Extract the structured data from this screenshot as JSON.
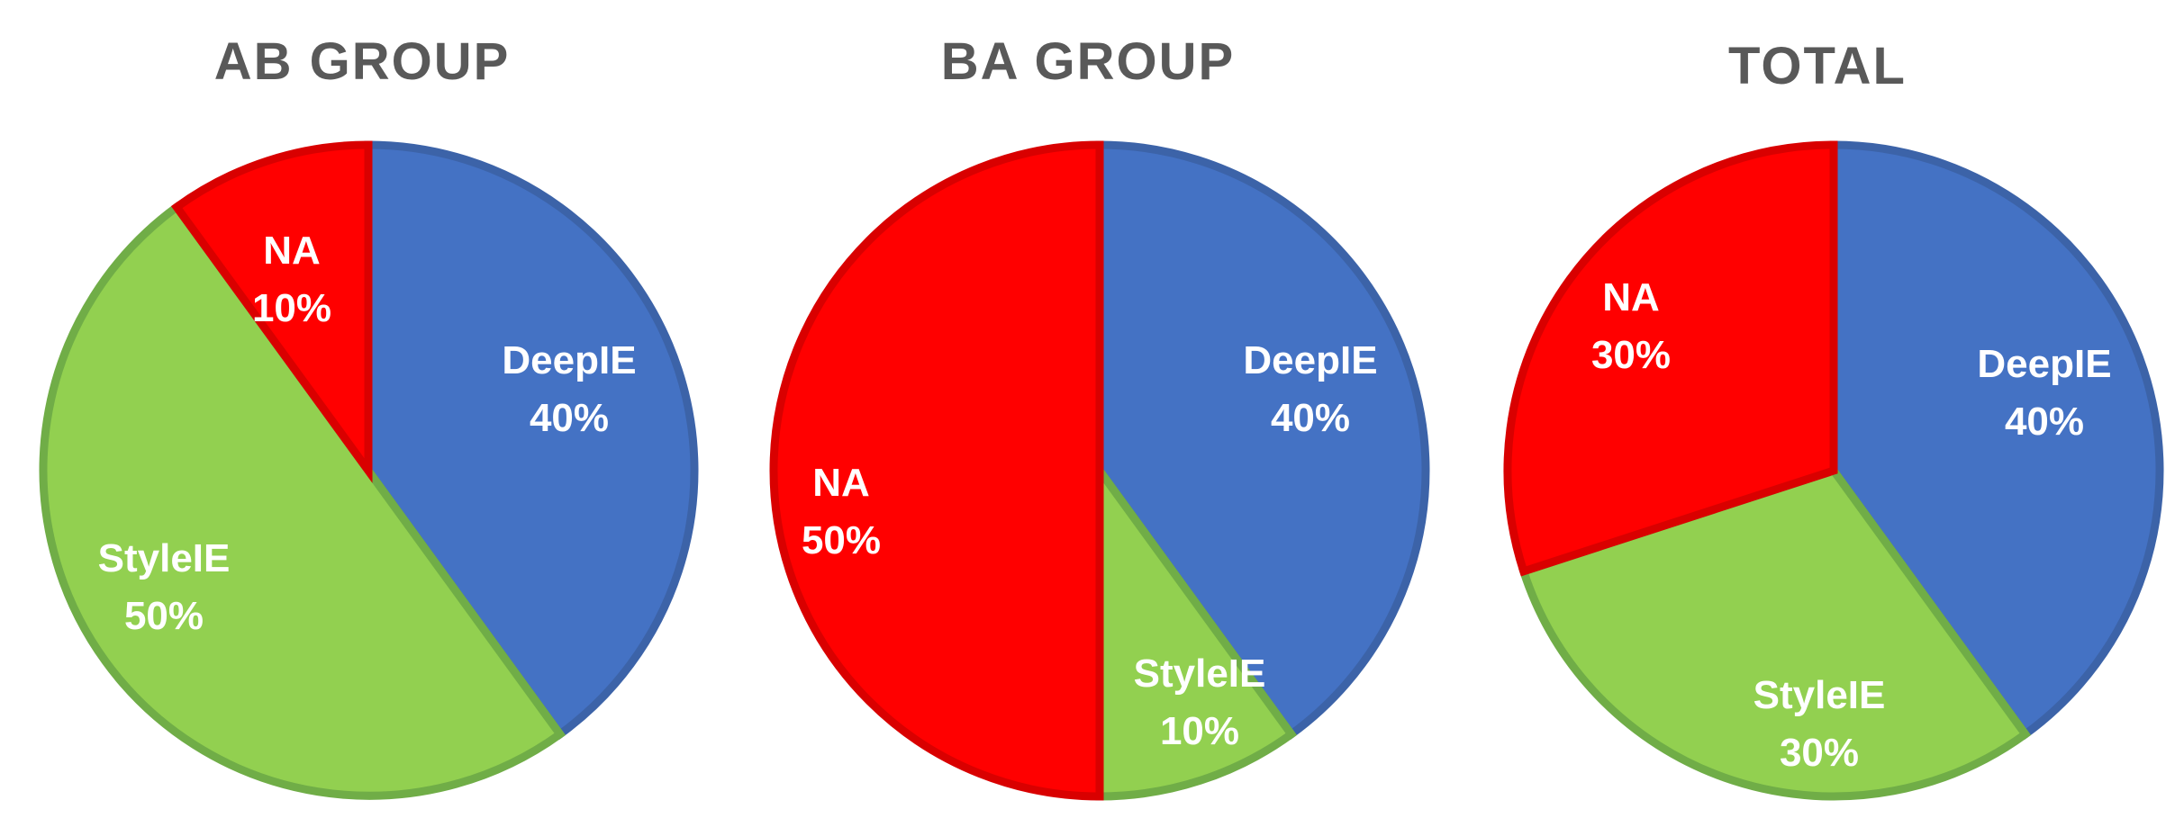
{
  "colors": {
    "DeepIE": {
      "fill": "#4472C4",
      "stroke": "#3C63A8"
    },
    "StyleIE": {
      "fill": "#92D050",
      "stroke": "#70AD47"
    },
    "NA": {
      "fill": "#FF0000",
      "stroke": "#D90000"
    },
    "title": "#595959",
    "label": "#FFFFFF"
  },
  "chart_data": [
    {
      "type": "pie",
      "title": "AB GROUP",
      "legend": "none",
      "start": "12 o'clock",
      "direction": "clockwise",
      "slices": [
        {
          "label": "DeepIE",
          "value": 40,
          "text": "40%"
        },
        {
          "label": "StyleIE",
          "value": 50,
          "text": "50%"
        },
        {
          "label": "NA",
          "value": 10,
          "text": "10%"
        }
      ]
    },
    {
      "type": "pie",
      "title": "BA GROUP",
      "legend": "none",
      "start": "12 o'clock",
      "direction": "clockwise",
      "slices": [
        {
          "label": "DeepIE",
          "value": 40,
          "text": "40%"
        },
        {
          "label": "StyleIE",
          "value": 10,
          "text": "10%"
        },
        {
          "label": "NA",
          "value": 50,
          "text": "50%"
        }
      ]
    },
    {
      "type": "pie",
      "title": "TOTAL",
      "legend": "none",
      "start": "12 o'clock",
      "direction": "clockwise",
      "slices": [
        {
          "label": "DeepIE",
          "value": 40,
          "text": "40%"
        },
        {
          "label": "StyleIE",
          "value": 30,
          "text": "30%"
        },
        {
          "label": "NA",
          "value": 30,
          "text": "30%"
        }
      ]
    }
  ]
}
